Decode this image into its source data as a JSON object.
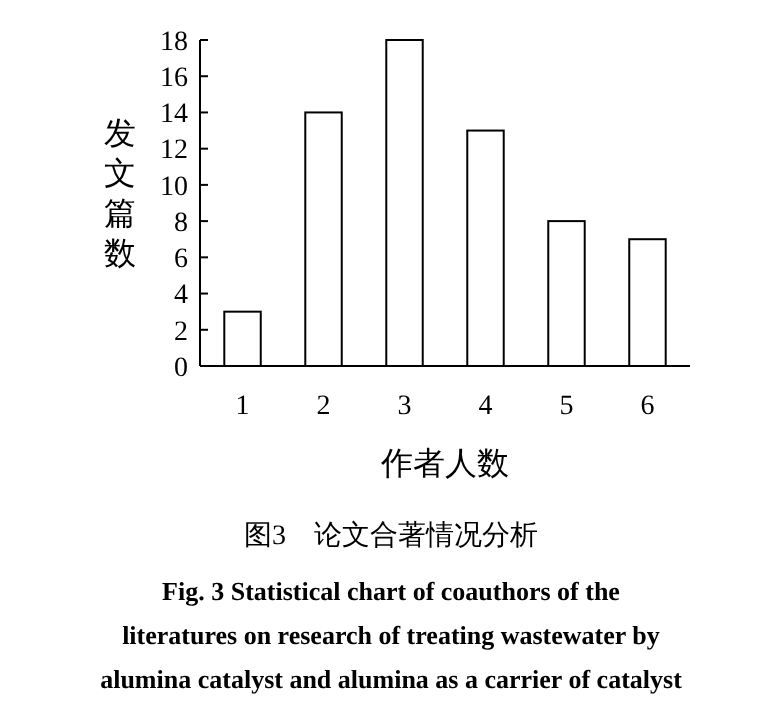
{
  "chart_data": {
    "type": "bar",
    "title": "图3　论文合著情况分析",
    "subtitle": "Fig. 3 Statistical chart of coauthors of the literatures on research of treating wastewater by alumina catalyst and alumina as a carrier of catalyst",
    "xlabel": "作者人数",
    "ylabel": "发文篇数",
    "categories": [
      "1",
      "2",
      "3",
      "4",
      "5",
      "6"
    ],
    "values": [
      3,
      14,
      18,
      13,
      8,
      7
    ],
    "color": "#ffffff",
    "ylim": [
      0,
      18
    ],
    "yticks": [
      0,
      2,
      4,
      6,
      8,
      10,
      12,
      14,
      16,
      18
    ],
    "grid": false
  }
}
